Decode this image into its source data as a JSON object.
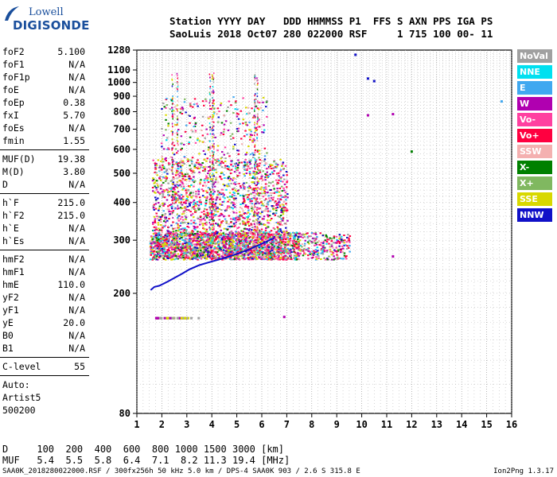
{
  "logo": {
    "line1": "Lowell",
    "line2": "DIGISONDE"
  },
  "header": {
    "line1": "Station YYYY DAY   DDD HHMMSS P1  FFS S AXN PPS IGA PS",
    "line2": "SaoLuis 2018 Oct07 280 022000 RSF     1 715 100 00- 11"
  },
  "params": {
    "group1": [
      {
        "label": "foF2",
        "value": "5.100"
      },
      {
        "label": "foF1",
        "value": "N/A"
      },
      {
        "label": "foF1p",
        "value": "N/A"
      },
      {
        "label": "foE",
        "value": "N/A"
      },
      {
        "label": "foEp",
        "value": "0.38"
      },
      {
        "label": "fxI",
        "value": "5.70"
      },
      {
        "label": "foEs",
        "value": "N/A"
      },
      {
        "label": "fmin",
        "value": "1.55"
      }
    ],
    "group2": [
      {
        "label": "MUF(D)",
        "value": "19.38"
      },
      {
        "label": "M(D)",
        "value": "3.80"
      },
      {
        "label": "D",
        "value": "N/A"
      }
    ],
    "group3": [
      {
        "label": "h`F",
        "value": "215.0"
      },
      {
        "label": "h`F2",
        "value": "215.0"
      },
      {
        "label": "h`E",
        "value": "N/A"
      },
      {
        "label": "h`Es",
        "value": "N/A"
      }
    ],
    "group4": [
      {
        "label": "hmF2",
        "value": "N/A"
      },
      {
        "label": "hmF1",
        "value": "N/A"
      },
      {
        "label": "hmE",
        "value": "110.0"
      },
      {
        "label": "yF2",
        "value": "N/A"
      },
      {
        "label": "yF1",
        "value": "N/A"
      },
      {
        "label": "yE",
        "value": "20.0"
      },
      {
        "label": "B0",
        "value": "N/A"
      },
      {
        "label": "B1",
        "value": "N/A"
      }
    ],
    "group5": [
      {
        "label": "C-level",
        "value": "55"
      }
    ],
    "extra": [
      "Auto:",
      "Artist5",
      "500200"
    ]
  },
  "legend": [
    {
      "label": "NoVal",
      "color": "#a0a0a0"
    },
    {
      "label": "NNE",
      "color": "#00e0f0"
    },
    {
      "label": "E",
      "color": "#40a8f0"
    },
    {
      "label": "W",
      "color": "#b000b0"
    },
    {
      "label": "Vo-",
      "color": "#ff40a0"
    },
    {
      "label": "Vo+",
      "color": "#ff0040"
    },
    {
      "label": "SSW",
      "color": "#f4b0b0"
    },
    {
      "label": "X-",
      "color": "#008000"
    },
    {
      "label": "X+",
      "color": "#80b860"
    },
    {
      "label": "SSE",
      "color": "#d8d800"
    },
    {
      "label": "NNW",
      "color": "#1010c8"
    }
  ],
  "chart_data": {
    "type": "scatter",
    "title": "",
    "xlabel": "",
    "ylabel": "",
    "xlim": [
      1,
      16
    ],
    "ylim": [
      80,
      1280
    ],
    "y_scale": "log",
    "grid": true,
    "xticks": [
      1,
      2,
      3,
      4,
      5,
      6,
      7,
      8,
      9,
      10,
      11,
      12,
      13,
      14,
      15,
      16
    ],
    "yticks": [
      80,
      200,
      300,
      400,
      500,
      600,
      700,
      800,
      900,
      1000,
      1100,
      1280
    ],
    "trace": {
      "name": "",
      "color": "#1010c8",
      "x": [
        1.55,
        1.7,
        1.9,
        2.2,
        2.5,
        2.8,
        3.1,
        3.5,
        4.0,
        4.5,
        5.0,
        5.5,
        6.0,
        6.5
      ],
      "y": [
        205,
        210,
        212,
        218,
        225,
        232,
        240,
        248,
        255,
        262,
        270,
        280,
        292,
        305
      ]
    },
    "scatter_clusters": [
      {
        "x_range": [
          1.5,
          9.5
        ],
        "y_range": [
          260,
          320
        ],
        "density": "high"
      },
      {
        "x_range": [
          1.6,
          7.0
        ],
        "y_range": [
          320,
          560
        ],
        "density": "medium"
      },
      {
        "x_range": [
          1.9,
          6.2
        ],
        "y_range": [
          560,
          900
        ],
        "density": "low"
      }
    ],
    "isolated_points": [
      {
        "x": 9.75,
        "y": 1235,
        "series": "NNW"
      },
      {
        "x": 10.25,
        "y": 1030,
        "series": "NNW"
      },
      {
        "x": 10.5,
        "y": 1010,
        "series": "NNW"
      },
      {
        "x": 10.25,
        "y": 778,
        "series": "W"
      },
      {
        "x": 11.25,
        "y": 785,
        "series": "W"
      },
      {
        "x": 12.0,
        "y": 590,
        "series": "X-"
      },
      {
        "x": 15.6,
        "y": 865,
        "series": "E"
      },
      {
        "x": 11.25,
        "y": 265,
        "series": "W"
      },
      {
        "x": 6.9,
        "y": 167,
        "series": "W"
      }
    ]
  },
  "footer": {
    "line1": "D     100  200  400  600  800 1000 1500 3000 [km]",
    "line2": "MUF   5.4  5.5  5.8  6.4  7.1  8.2 11.3 19.4 [MHz]",
    "bottom": "SAA0K_2018280022000.RSF / 300fx256h 50 kHz 5.0 km / DPS-4 SAA0K 903 / 2.6 S 315.8 E",
    "version": "Ion2Png 1.3.17"
  }
}
